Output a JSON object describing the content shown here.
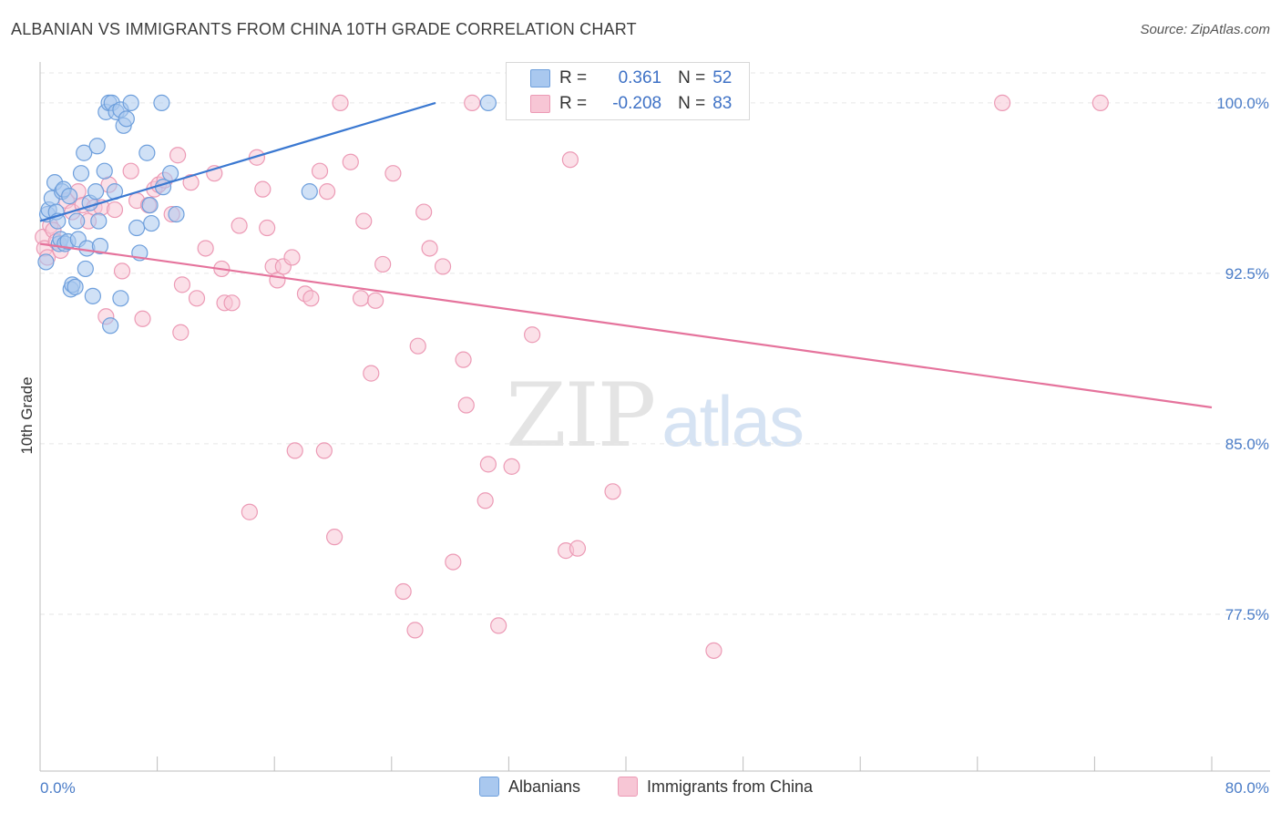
{
  "title": "ALBANIAN VS IMMIGRANTS FROM CHINA 10TH GRADE CORRELATION CHART",
  "source": "Source: ZipAtlas.com",
  "watermark": {
    "zip": "ZIP",
    "atlas": "atlas"
  },
  "legend": {
    "rows": [
      {
        "r_label": "R =",
        "r_value": "0.361",
        "n_label": "N =",
        "n_value": "52",
        "color": "#a9c8ef"
      },
      {
        "r_label": "R =",
        "r_value": "-0.208",
        "n_label": "N =",
        "n_value": "83",
        "color": "#f5b8cb"
      }
    ]
  },
  "bottom_legend": [
    "Albanians",
    "Immigrants from China"
  ],
  "colors": {
    "blue_fill": "#a9c8ef",
    "blue_stroke": "#6e9fdc",
    "blue_line": "#3a78d1",
    "pink_fill": "#f7c6d5",
    "pink_stroke": "#ec9ab5",
    "pink_line": "#e5739c",
    "grid": "#e6e6e6",
    "axis_text": "#4a7cc7"
  },
  "chart_data": {
    "type": "scatter",
    "title": "ALBANIAN VS IMMIGRANTS FROM CHINA 10TH GRADE CORRELATION CHART",
    "xlabel": "",
    "ylabel": "10th Grade",
    "xlim": [
      0,
      80
    ],
    "ylim": [
      70.6,
      101.8
    ],
    "x_tick_labels": [
      "0.0%",
      "80.0%"
    ],
    "y_ticks": [
      {
        "value": 100.0,
        "label": "100.0%"
      },
      {
        "value": 92.5,
        "label": "92.5%"
      },
      {
        "value": 85.0,
        "label": "85.0%"
      },
      {
        "value": 77.5,
        "label": "77.5%"
      }
    ],
    "grid": "horizontal dashed",
    "series": [
      {
        "name": "Albanians",
        "r": 0.361,
        "n": 52,
        "trend": {
          "x0": 0.0,
          "y0": 94.8,
          "x1": 27.0,
          "y1": 100.0
        },
        "points": [
          [
            0.4,
            93.0
          ],
          [
            0.5,
            95.1
          ],
          [
            0.6,
            95.3
          ],
          [
            0.8,
            95.8
          ],
          [
            1.0,
            96.5
          ],
          [
            1.1,
            95.2
          ],
          [
            1.2,
            94.8
          ],
          [
            1.3,
            93.8
          ],
          [
            1.4,
            94.0
          ],
          [
            1.5,
            96.1
          ],
          [
            1.6,
            96.2
          ],
          [
            1.7,
            93.8
          ],
          [
            1.9,
            93.9
          ],
          [
            2.0,
            95.9
          ],
          [
            2.1,
            91.8
          ],
          [
            2.2,
            92.0
          ],
          [
            2.4,
            91.9
          ],
          [
            2.5,
            94.8
          ],
          [
            2.6,
            94.0
          ],
          [
            2.8,
            96.9
          ],
          [
            3.0,
            97.8
          ],
          [
            3.1,
            92.7
          ],
          [
            3.2,
            93.6
          ],
          [
            3.4,
            95.6
          ],
          [
            3.6,
            91.5
          ],
          [
            3.8,
            96.1
          ],
          [
            3.9,
            98.1
          ],
          [
            4.0,
            94.8
          ],
          [
            4.1,
            93.7
          ],
          [
            4.4,
            97.0
          ],
          [
            4.5,
            99.6
          ],
          [
            4.7,
            100.0
          ],
          [
            4.9,
            100.0
          ],
          [
            5.2,
            99.6
          ],
          [
            5.5,
            99.7
          ],
          [
            5.7,
            99.0
          ],
          [
            5.9,
            99.3
          ],
          [
            5.5,
            91.4
          ],
          [
            5.1,
            96.1
          ],
          [
            4.8,
            90.2
          ],
          [
            6.6,
            94.5
          ],
          [
            6.8,
            93.4
          ],
          [
            7.3,
            97.8
          ],
          [
            7.6,
            94.7
          ],
          [
            7.5,
            95.5
          ],
          [
            8.3,
            100.0
          ],
          [
            8.4,
            96.3
          ],
          [
            8.9,
            96.9
          ],
          [
            9.3,
            95.1
          ],
          [
            18.4,
            96.1
          ],
          [
            30.6,
            100.0
          ],
          [
            6.2,
            100.0
          ]
        ]
      },
      {
        "name": "Immigrants from China",
        "r": -0.208,
        "n": 83,
        "trend": {
          "x0": 0.0,
          "y0": 93.8,
          "x1": 80.0,
          "y1": 86.6
        },
        "points": [
          [
            0.2,
            94.1
          ],
          [
            0.3,
            93.6
          ],
          [
            0.5,
            93.2
          ],
          [
            0.7,
            94.6
          ],
          [
            0.9,
            94.4
          ],
          [
            1.1,
            93.9
          ],
          [
            1.4,
            93.5
          ],
          [
            1.8,
            95.7
          ],
          [
            2.2,
            95.2
          ],
          [
            2.6,
            96.1
          ],
          [
            2.9,
            95.5
          ],
          [
            3.3,
            94.8
          ],
          [
            3.7,
            95.4
          ],
          [
            4.2,
            95.4
          ],
          [
            4.7,
            96.4
          ],
          [
            5.1,
            95.3
          ],
          [
            5.6,
            92.6
          ],
          [
            6.2,
            97.0
          ],
          [
            6.6,
            95.7
          ],
          [
            7.0,
            90.5
          ],
          [
            7.4,
            95.5
          ],
          [
            7.8,
            96.2
          ],
          [
            8.1,
            96.4
          ],
          [
            8.5,
            96.6
          ],
          [
            9.0,
            95.1
          ],
          [
            9.4,
            97.7
          ],
          [
            9.6,
            89.9
          ],
          [
            9.7,
            92.0
          ],
          [
            10.3,
            96.5
          ],
          [
            10.7,
            91.4
          ],
          [
            11.3,
            93.6
          ],
          [
            11.9,
            96.9
          ],
          [
            12.4,
            92.7
          ],
          [
            12.6,
            91.2
          ],
          [
            13.1,
            91.2
          ],
          [
            13.6,
            94.6
          ],
          [
            14.3,
            82.0
          ],
          [
            14.8,
            97.6
          ],
          [
            15.2,
            96.2
          ],
          [
            15.5,
            94.5
          ],
          [
            15.9,
            92.8
          ],
          [
            16.2,
            92.2
          ],
          [
            16.6,
            92.8
          ],
          [
            17.2,
            93.2
          ],
          [
            17.4,
            84.7
          ],
          [
            18.1,
            91.6
          ],
          [
            18.5,
            91.4
          ],
          [
            19.1,
            97.0
          ],
          [
            19.4,
            84.7
          ],
          [
            19.6,
            96.1
          ],
          [
            20.1,
            80.9
          ],
          [
            20.5,
            100.0
          ],
          [
            21.2,
            97.4
          ],
          [
            21.9,
            91.4
          ],
          [
            22.1,
            94.8
          ],
          [
            22.6,
            88.1
          ],
          [
            22.9,
            91.3
          ],
          [
            23.4,
            92.9
          ],
          [
            24.1,
            96.9
          ],
          [
            24.8,
            78.5
          ],
          [
            25.6,
            76.8
          ],
          [
            25.8,
            89.3
          ],
          [
            26.2,
            95.2
          ],
          [
            26.6,
            93.6
          ],
          [
            27.5,
            92.8
          ],
          [
            28.2,
            79.8
          ],
          [
            28.9,
            88.7
          ],
          [
            29.1,
            86.7
          ],
          [
            29.5,
            100.0
          ],
          [
            30.4,
            82.5
          ],
          [
            30.6,
            84.1
          ],
          [
            31.3,
            77.0
          ],
          [
            32.2,
            84.0
          ],
          [
            32.8,
            100.0
          ],
          [
            33.6,
            89.8
          ],
          [
            35.9,
            80.3
          ],
          [
            36.2,
            97.5
          ],
          [
            36.7,
            80.4
          ],
          [
            39.1,
            82.9
          ],
          [
            46.0,
            75.9
          ],
          [
            65.7,
            100.0
          ],
          [
            72.4,
            100.0
          ],
          [
            4.5,
            90.6
          ]
        ]
      }
    ]
  }
}
